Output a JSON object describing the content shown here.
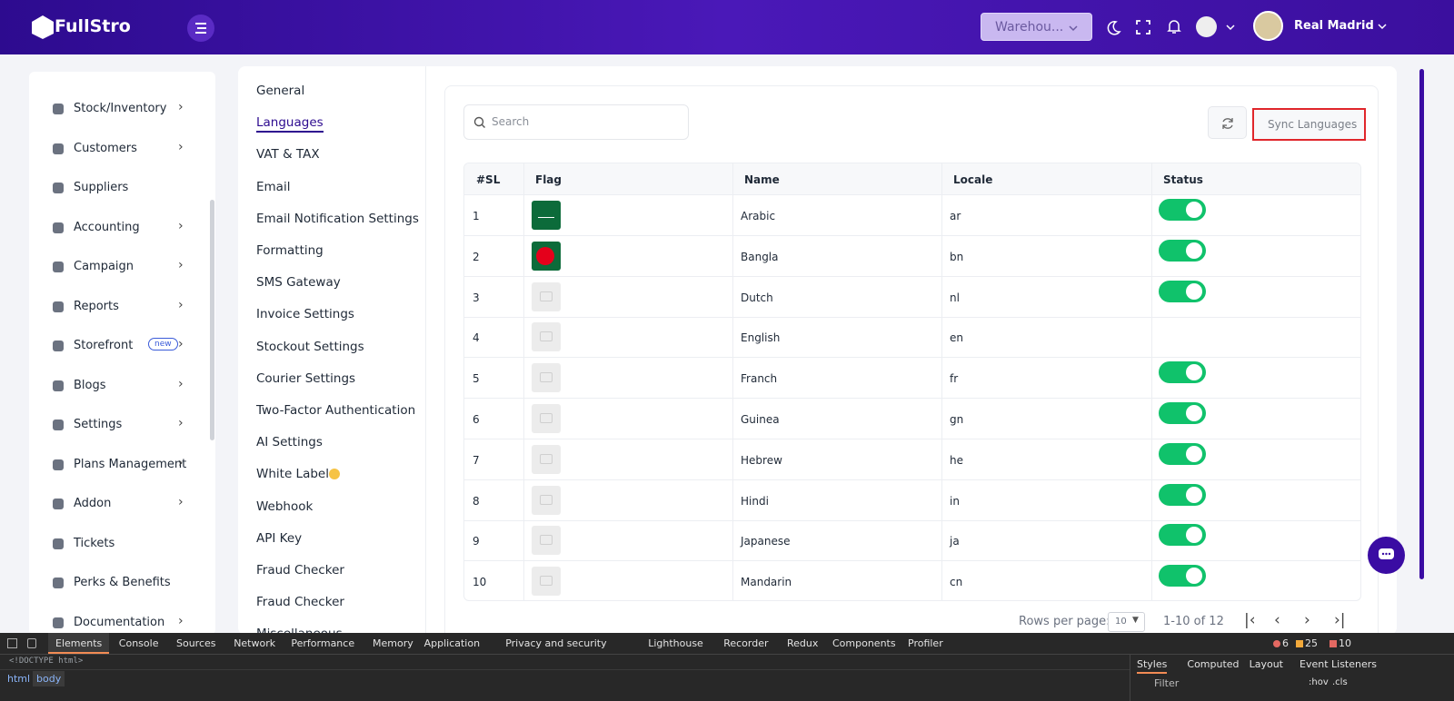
{
  "header": {
    "brand": "FullStro",
    "warehouse": "Warehou...",
    "user": "Real Madrid"
  },
  "sidebar": {
    "items": [
      {
        "label": "Stock/Inventory",
        "arrow": true
      },
      {
        "label": "Customers",
        "arrow": true
      },
      {
        "label": "Suppliers",
        "arrow": false
      },
      {
        "label": "Accounting",
        "arrow": true
      },
      {
        "label": "Campaign",
        "arrow": true
      },
      {
        "label": "Reports",
        "arrow": true
      },
      {
        "label": "Storefront",
        "arrow": true,
        "badge": "new"
      },
      {
        "label": "Blogs",
        "arrow": true
      },
      {
        "label": "Settings",
        "arrow": true
      },
      {
        "label": "Plans Management",
        "arrow": true
      },
      {
        "label": "Addon",
        "arrow": true
      },
      {
        "label": "Tickets",
        "arrow": false
      },
      {
        "label": "Perks & Benefits",
        "arrow": false
      },
      {
        "label": "Documentation",
        "arrow": true
      }
    ]
  },
  "settings_menu": {
    "active": 1,
    "items": [
      "General",
      "Languages",
      "VAT & TAX",
      "Email",
      "Email Notification Settings",
      "Formatting",
      "SMS Gateway",
      "Invoice Settings",
      "Stockout Settings",
      "Courier Settings",
      "Two-Factor Authentication",
      "AI Settings",
      "White Label",
      "Webhook",
      "API Key",
      "Fraud Checker",
      "Fraud Checker",
      "Miscellaneous"
    ]
  },
  "table": {
    "search_placeholder": "Search",
    "sync_button": "Sync Languages",
    "columns": [
      "#SL",
      "Flag",
      "Name",
      "Locale",
      "Status"
    ],
    "rows": [
      {
        "sl": "1",
        "flag": true,
        "name": "Arabic",
        "locale": "ar",
        "enabled": true
      },
      {
        "sl": "2",
        "flag": true,
        "name": "Bangla",
        "locale": "bn",
        "enabled": true
      },
      {
        "sl": "3",
        "flag": false,
        "name": "Dutch",
        "locale": "nl",
        "enabled": true
      },
      {
        "sl": "4",
        "flag": false,
        "name": "English",
        "locale": "en",
        "enabled": false
      },
      {
        "sl": "5",
        "flag": false,
        "name": "Franch",
        "locale": "fr",
        "enabled": true
      },
      {
        "sl": "6",
        "flag": false,
        "name": "Guinea",
        "locale": "gn",
        "enabled": true
      },
      {
        "sl": "7",
        "flag": false,
        "name": "Hebrew",
        "locale": "he",
        "enabled": true
      },
      {
        "sl": "8",
        "flag": false,
        "name": "Hindi",
        "locale": "in",
        "enabled": true
      },
      {
        "sl": "9",
        "flag": false,
        "name": "Japanese",
        "locale": "ja",
        "enabled": true
      },
      {
        "sl": "10",
        "flag": false,
        "name": "Mandarin",
        "locale": "cn",
        "enabled": true
      }
    ]
  },
  "pagination": {
    "rows_per_page_label": "Rows per page:",
    "rows_per_page": "10",
    "range": "1-10 of 12"
  },
  "devtools": {
    "tabs": [
      "Elements",
      "Console",
      "Sources",
      "Network",
      "Performance",
      "Memory",
      "Application",
      "Privacy and security",
      "Lighthouse",
      "Recorder",
      "Redux",
      "Components",
      "Profiler"
    ],
    "active_tab": 0,
    "errors": "6",
    "warnings": "25",
    "infos": "10",
    "doctype": "<!DOCTYPE html>",
    "breadcrumbs": [
      "html",
      "body"
    ],
    "side_tabs": [
      "Styles",
      "Computed",
      "Layout",
      "Event Listeners"
    ],
    "filter": "Filter",
    "hov": ":hov",
    "cls": ".cls"
  }
}
